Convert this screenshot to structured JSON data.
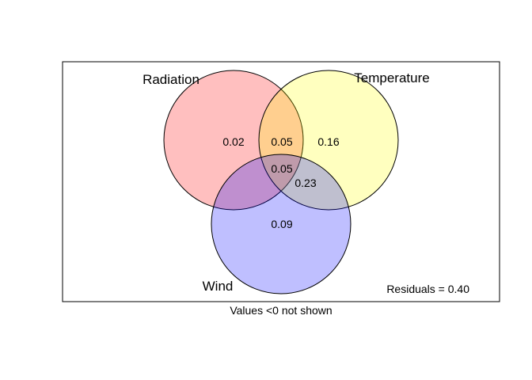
{
  "diagram": {
    "type": "venn",
    "sets": [
      {
        "name": "Radiation",
        "color": "#ff0000",
        "fill_opacity": 0.25
      },
      {
        "name": "Temperature",
        "color": "#ffff00",
        "fill_opacity": 0.25
      },
      {
        "name": "Wind",
        "color": "#0000ff",
        "fill_opacity": 0.25
      }
    ],
    "regions": [
      {
        "id": "radiation_only",
        "value": "0.02"
      },
      {
        "id": "radiation_temperature",
        "value": "0.05"
      },
      {
        "id": "temperature_only",
        "value": "0.16"
      },
      {
        "id": "all_three",
        "value": "0.05"
      },
      {
        "id": "temperature_wind",
        "value": "0.23"
      },
      {
        "id": "wind_only",
        "value": "0.09"
      }
    ],
    "residuals_label": "Residuals = 0.40",
    "footnote": "Values <0 not shown"
  }
}
